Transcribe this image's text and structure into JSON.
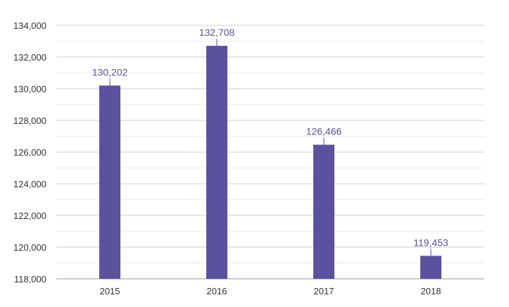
{
  "chart_data": {
    "type": "bar",
    "categories": [
      "2015",
      "2016",
      "2017",
      "2018"
    ],
    "values": [
      130202,
      132708,
      126466,
      119453
    ],
    "data_labels": [
      "130,202",
      "132,708",
      "126,466",
      "119,453"
    ],
    "ylim": [
      118000,
      134000
    ],
    "y_ticks": [
      118000,
      120000,
      122000,
      124000,
      126000,
      128000,
      130000,
      132000,
      134000
    ],
    "y_tick_labels": [
      "118,000",
      "120,000",
      "122,000",
      "124,000",
      "126,000",
      "128,000",
      "130,000",
      "132,000",
      "134,000"
    ],
    "grid": true,
    "minor_grid_step": 1000,
    "legend": "none"
  },
  "colors": {
    "bar": "#5b519e",
    "label": "#5b519e",
    "grid_major": "#cfcfcf",
    "grid_minor": "#ececec",
    "axis": "#999999"
  }
}
